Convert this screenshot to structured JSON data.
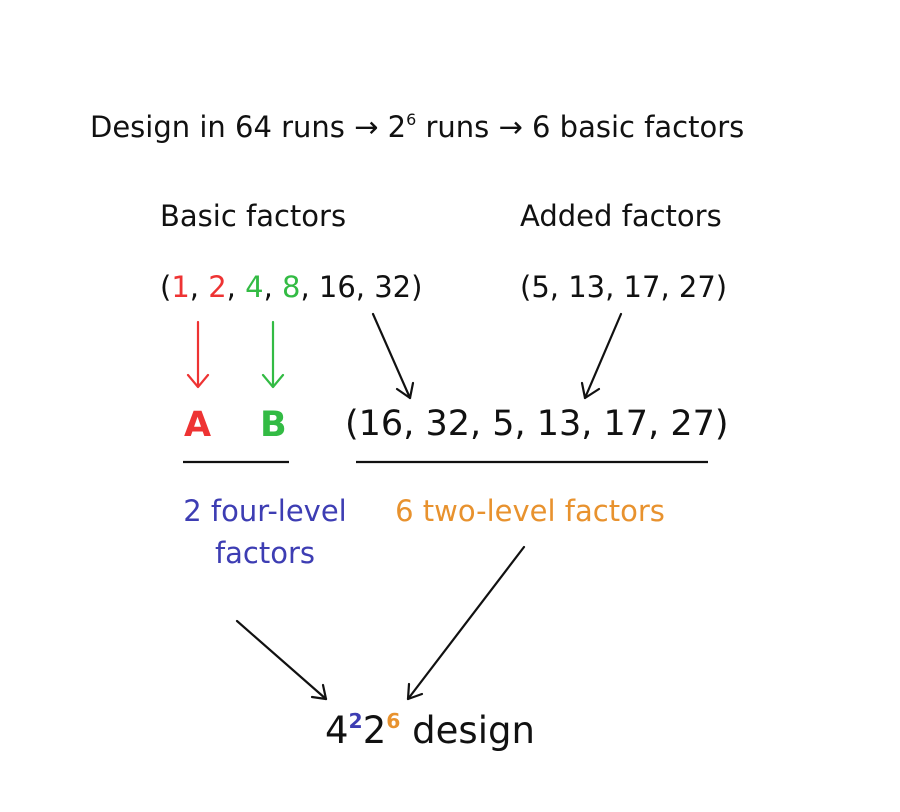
{
  "title": {
    "part1": "Design in 64 runs → 2",
    "exp": "6",
    "part2": " runs → 6 basic factors"
  },
  "basic": {
    "header": "Basic factors",
    "open": "(",
    "items": [
      "1",
      "2",
      "4",
      "8",
      "16",
      "32"
    ],
    "sep": ", ",
    "close": ")"
  },
  "added": {
    "header": "Added factors",
    "list": "(5, 13, 17, 27)"
  },
  "factor_a": "A",
  "factor_b": "B",
  "combined": "(16, 32, 5, 13, 17, 27)",
  "four_level_label": "2 four-level factors",
  "two_level_label": "6 two-level factors",
  "final": {
    "base1": "4",
    "exp1": "2",
    "base2": "2",
    "exp2": "6",
    "suffix": " design"
  },
  "colors": {
    "red": "#ee3333",
    "green": "#33bb44",
    "blue": "#3d3db3",
    "orange": "#e8922e",
    "black": "#111111"
  }
}
